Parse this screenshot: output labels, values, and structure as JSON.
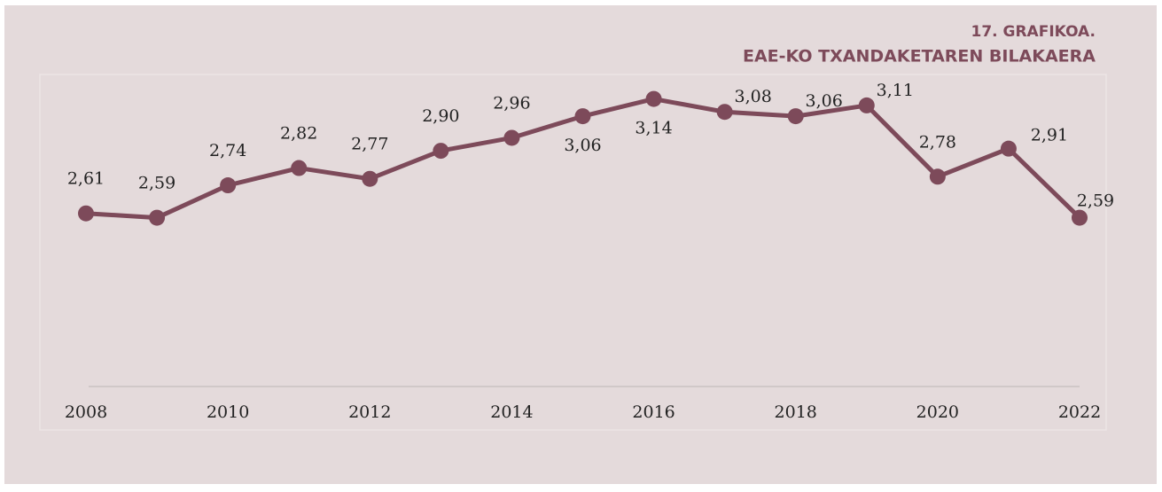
{
  "chart_data": {
    "type": "line",
    "title": "17. GRAFIKOA.",
    "subtitle": "EAE-KO TXANDAKETAREN BILAKAERA",
    "x": [
      2008,
      2009,
      2010,
      2011,
      2012,
      2013,
      2014,
      2015,
      2016,
      2017,
      2018,
      2019,
      2020,
      2021,
      2022
    ],
    "series": [
      {
        "name": "EAE",
        "color": "#7d4a5a",
        "values": [
          2.61,
          2.59,
          2.74,
          2.82,
          2.77,
          2.9,
          2.96,
          3.06,
          3.14,
          3.08,
          3.06,
          3.11,
          2.78,
          2.91,
          2.59
        ],
        "value_labels": [
          "2,61",
          "2,59",
          "2,74",
          "2,82",
          "2,77",
          "2,90",
          "2,96",
          "3,06",
          "3,14",
          "3,08",
          "3,06",
          "3,11",
          "2,78",
          "2,91",
          "2,59"
        ]
      }
    ],
    "xlim": [
      2008,
      2022
    ],
    "xticks": [
      2008,
      2010,
      2012,
      2014,
      2016,
      2018,
      2020,
      2022
    ],
    "ylim": [
      1.8,
      3.2
    ]
  }
}
